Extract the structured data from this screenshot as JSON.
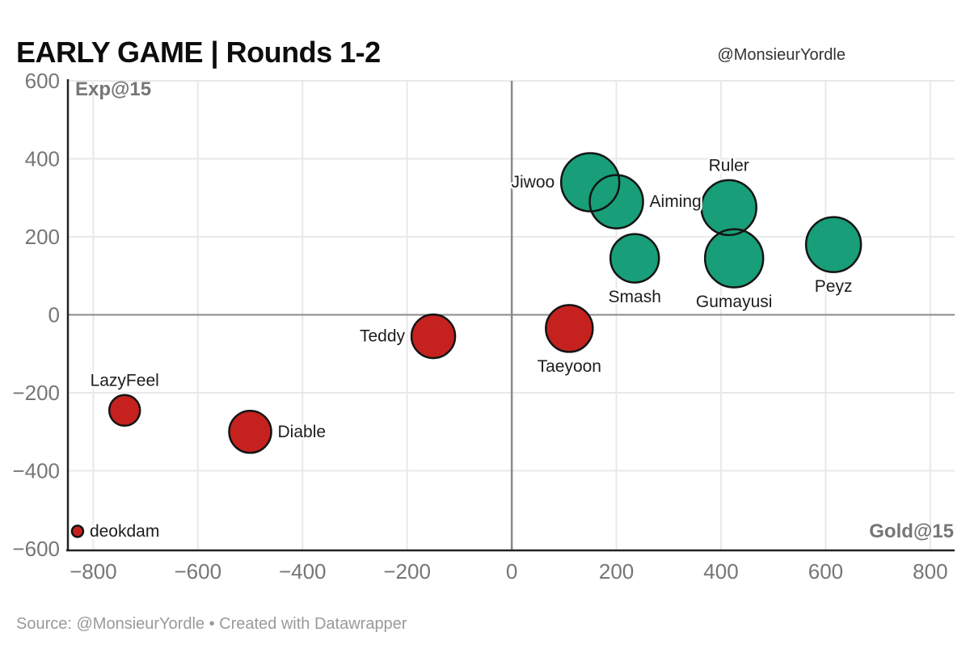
{
  "chart": {
    "title": "EARLY GAME | Rounds 1-2",
    "byline": "@MonsieurYordle",
    "footer": "Source: @MonsieurYordle • Created with Datawrapper",
    "x_axis_title": "Gold@15",
    "y_axis_title": "Exp@15"
  },
  "chart_data": {
    "type": "scatter",
    "title": "EARLY GAME | Rounds 1-2",
    "xlabel": "Gold@15",
    "ylabel": "Exp@15",
    "xlim": [
      -850,
      845
    ],
    "ylim": [
      -604,
      600
    ],
    "x_ticks": [
      -800,
      -600,
      -400,
      -200,
      0,
      200,
      400,
      600,
      800
    ],
    "y_ticks": [
      600,
      400,
      200,
      0,
      -200,
      -400,
      -600
    ],
    "grid": true,
    "legend": "none",
    "colors": {
      "positive": "#189e78",
      "negative": "#c5221f",
      "bubble_stroke": "#141414",
      "grid_line": "#e9e9e9",
      "zero_line": "#8a8a8a",
      "axis_line": "#222222",
      "tick_text": "#767676",
      "label_text": "#1d1d1d"
    },
    "points": [
      {
        "name": "Jiwoo",
        "gold": 150,
        "exp": 340,
        "r": 36,
        "color": "positive",
        "label_pos": "left"
      },
      {
        "name": "Aiming",
        "gold": 200,
        "exp": 290,
        "r": 33,
        "color": "positive",
        "label_pos": "right"
      },
      {
        "name": "Ruler",
        "gold": 415,
        "exp": 275,
        "r": 34,
        "color": "positive",
        "label_pos": "above"
      },
      {
        "name": "Smash",
        "gold": 235,
        "exp": 145,
        "r": 30,
        "color": "positive",
        "label_pos": "below"
      },
      {
        "name": "Gumayusi",
        "gold": 425,
        "exp": 145,
        "r": 36,
        "color": "positive",
        "label_pos": "below"
      },
      {
        "name": "Peyz",
        "gold": 615,
        "exp": 180,
        "r": 34,
        "color": "positive",
        "label_pos": "below"
      },
      {
        "name": "Teddy",
        "gold": -150,
        "exp": -55,
        "r": 27,
        "color": "negative",
        "label_pos": "left"
      },
      {
        "name": "Taeyoon",
        "gold": 110,
        "exp": -35,
        "r": 29,
        "color": "negative",
        "label_pos": "below"
      },
      {
        "name": "LazyFeel",
        "gold": -740,
        "exp": -245,
        "r": 19,
        "color": "negative",
        "label_pos": "above"
      },
      {
        "name": "Diable",
        "gold": -500,
        "exp": -300,
        "r": 26,
        "color": "negative",
        "label_pos": "right"
      },
      {
        "name": "deokdam",
        "gold": -830,
        "exp": -555,
        "r": 7,
        "color": "negative",
        "label_pos": "right"
      }
    ]
  }
}
